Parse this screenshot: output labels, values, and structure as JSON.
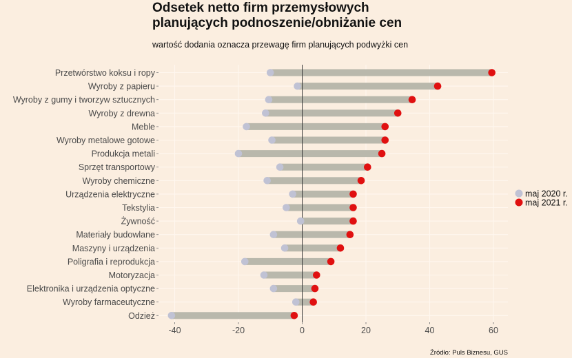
{
  "chart_data": {
    "type": "dumbbell",
    "title_lines": [
      "Odsetek netto firm przemysłowych",
      "planujących podnoszenie/obniżanie cen"
    ],
    "subtitle": "wartość dodania oznacza przewagę firm planujących podwyżki cen",
    "caption": "Źródło: Puls Biznesu, GUS",
    "xlim": [
      -45,
      66
    ],
    "xticks": [
      -40,
      -20,
      0,
      20,
      40,
      60
    ],
    "xtick_labels": [
      "-40",
      "-20",
      "0",
      "20",
      "40",
      "60"
    ],
    "grid": true,
    "legend_position": "right",
    "series": [
      {
        "name": "maj 2020 r.",
        "color": "#c0c2d4"
      },
      {
        "name": "maj 2021 r.",
        "color": "#e01010"
      }
    ],
    "bar_color": "#b9b8ac",
    "zero_line_color": "#333333",
    "categories": [
      "Przetwórstwo koksu i ropy",
      "Wyroby z papieru",
      "Wyroby z gumy i tworzyw sztucznych",
      "Wyroby z drewna",
      "Meble",
      "Wyroby metalowe gotowe",
      "Produkcja metali",
      "Sprzęt transportowy",
      "Wyroby chemiczne",
      "Urządzenia elektryczne",
      "Tekstylia",
      "Żywność",
      "Materiały budowlane",
      "Maszyny i urządzenia",
      "Poligrafia i reprodukcja",
      "Motoryzacja",
      "Elektronika i urządzenia optyczne",
      "Wyroby farmaceutyczne",
      "Odzież"
    ],
    "values_2020": [
      -10,
      -1.5,
      -10.5,
      -11.5,
      -17.5,
      -9.5,
      -20,
      -7,
      -11,
      -3,
      -5,
      -0.5,
      -9,
      -5.5,
      -18,
      -12,
      -9,
      -2,
      -41
    ],
    "values_2021": [
      59.5,
      42.5,
      34.5,
      30,
      26,
      26,
      25,
      20.5,
      18.5,
      16,
      16,
      16,
      15,
      12,
      9,
      4.5,
      4,
      3.5,
      -2.5
    ]
  }
}
